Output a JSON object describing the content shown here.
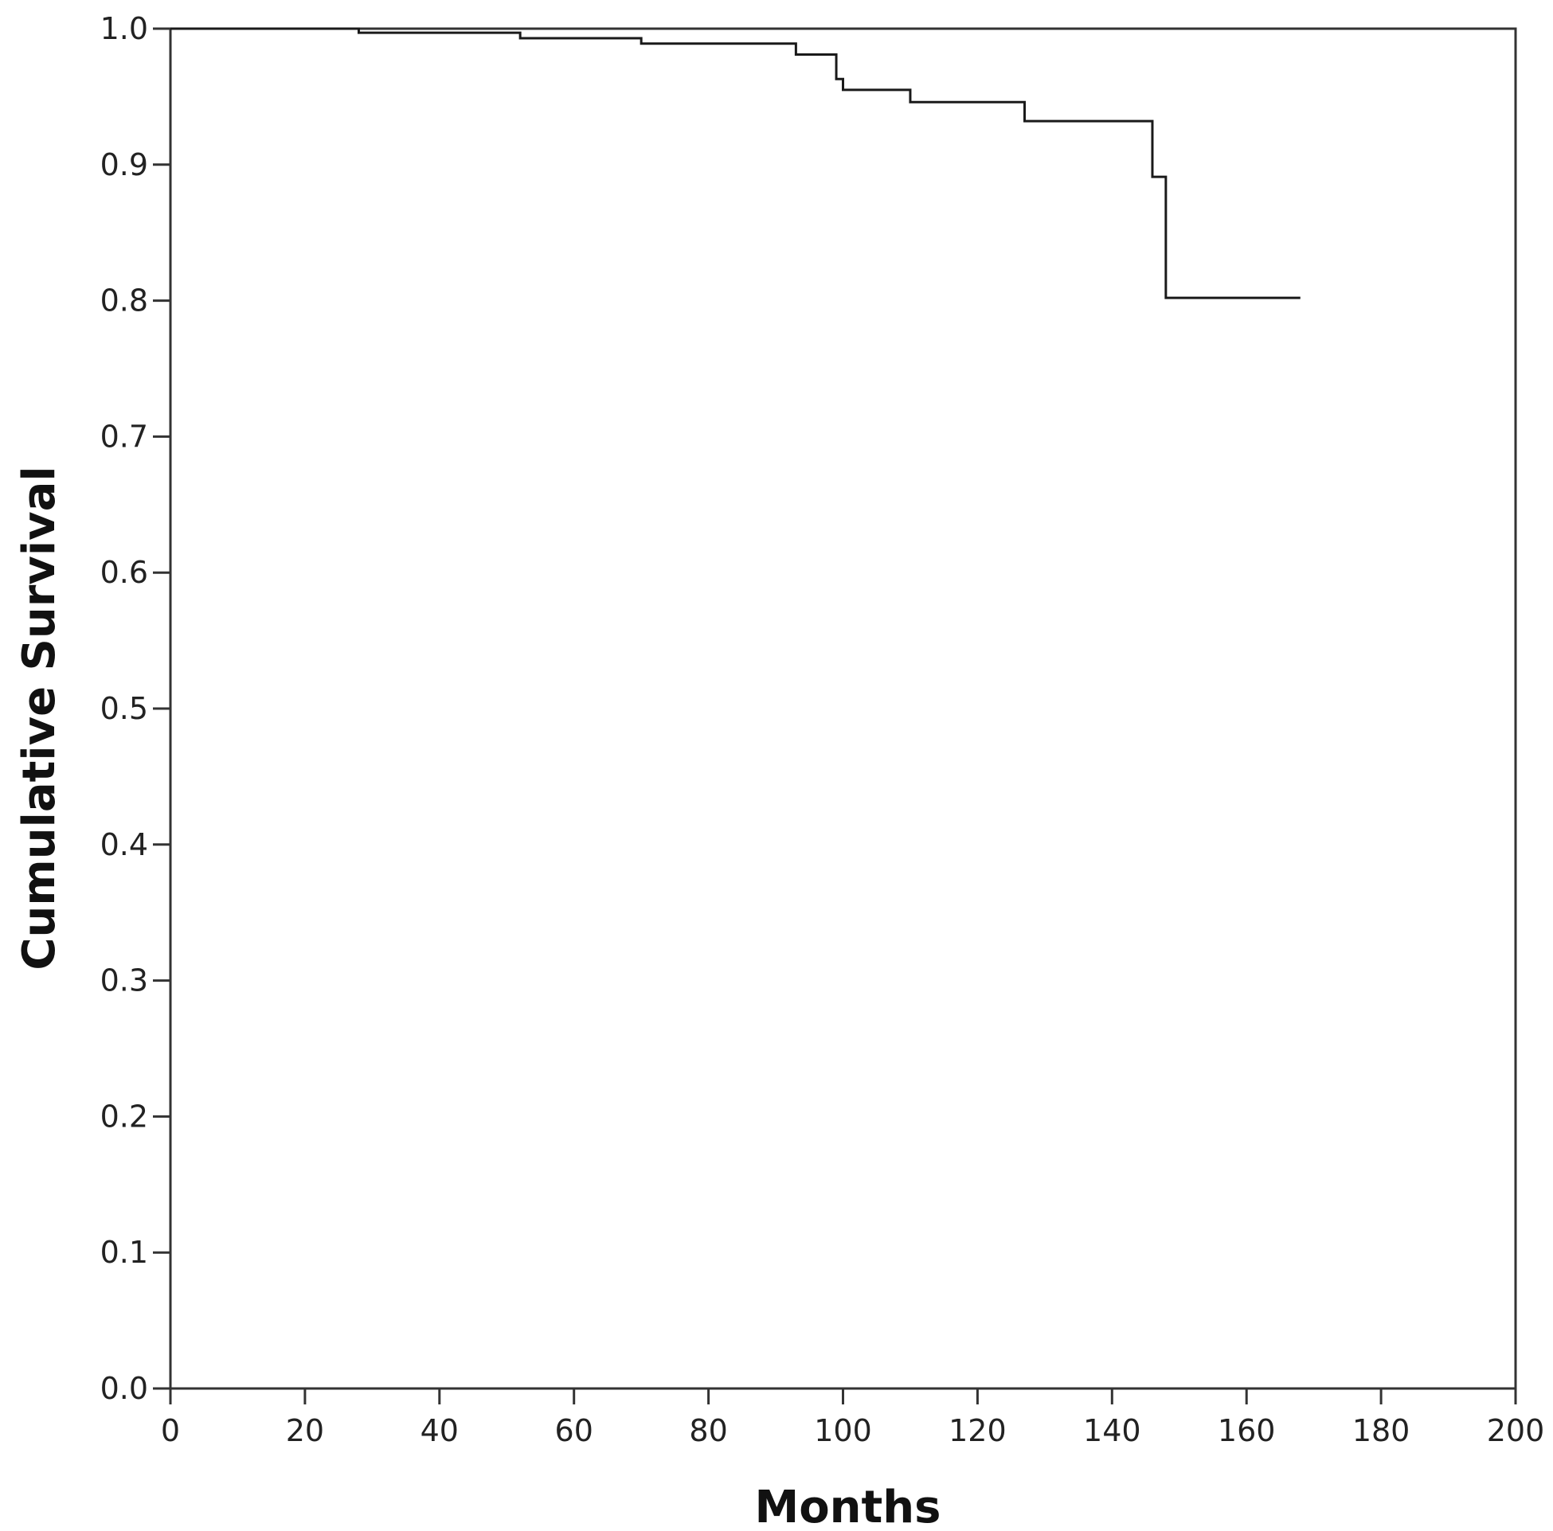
{
  "chart_data": {
    "type": "line",
    "step": true,
    "xlabel": "Months",
    "ylabel": "Cumulative Survival",
    "xlim": [
      0,
      200
    ],
    "ylim": [
      0.0,
      1.0
    ],
    "x_ticks": [
      0,
      20,
      40,
      60,
      80,
      100,
      120,
      140,
      160,
      180,
      200
    ],
    "x_tick_labels": [
      "0",
      "20",
      "40",
      "60",
      "80",
      "100",
      "120",
      "140",
      "160",
      "180",
      "200"
    ],
    "y_ticks": [
      0.0,
      0.1,
      0.2,
      0.3,
      0.4,
      0.5,
      0.6,
      0.7,
      0.8,
      0.9,
      1.0
    ],
    "y_tick_labels": [
      "0.0",
      "0.1",
      "0.2",
      "0.3",
      "0.4",
      "0.5",
      "0.6",
      "0.7",
      "0.8",
      "0.9",
      "1.0"
    ],
    "grid": false,
    "legend": "none",
    "line_color": "#1a1a1a",
    "series": [
      {
        "x": [
          0,
          28,
          52,
          70,
          93,
          99,
          100,
          110,
          127,
          146,
          148,
          168
        ],
        "y": [
          1.0,
          0.997,
          0.993,
          0.989,
          0.981,
          0.963,
          0.955,
          0.946,
          0.932,
          0.891,
          0.802,
          0.802
        ]
      }
    ]
  }
}
